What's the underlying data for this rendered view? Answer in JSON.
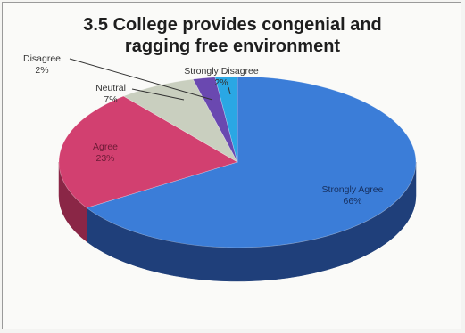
{
  "chart_data": {
    "type": "pie",
    "three_d": true,
    "title_lines": [
      "3.5 College provides congenial and",
      "ragging free environment"
    ],
    "legend": "none",
    "slices": [
      {
        "label": "Strongly Agree",
        "value": 66,
        "value_label": "66%",
        "color": "#3b7dd8",
        "side_color": "#1f3f7a"
      },
      {
        "label": "Agree",
        "value": 23,
        "value_label": "23%",
        "color": "#d24070",
        "side_color": "#8a2646"
      },
      {
        "label": "Neutral",
        "value": 7,
        "value_label": "7%",
        "color": "#c9cfbf",
        "side_color": "#7f8676"
      },
      {
        "label": "Disagree",
        "value": 2,
        "value_label": "2%",
        "color": "#6a48b0",
        "side_color": "#3e2a6c"
      },
      {
        "label": "Strongly Disagree",
        "value": 2,
        "value_label": "2%",
        "color": "#2aa7e4",
        "side_color": "#166a94"
      }
    ]
  }
}
